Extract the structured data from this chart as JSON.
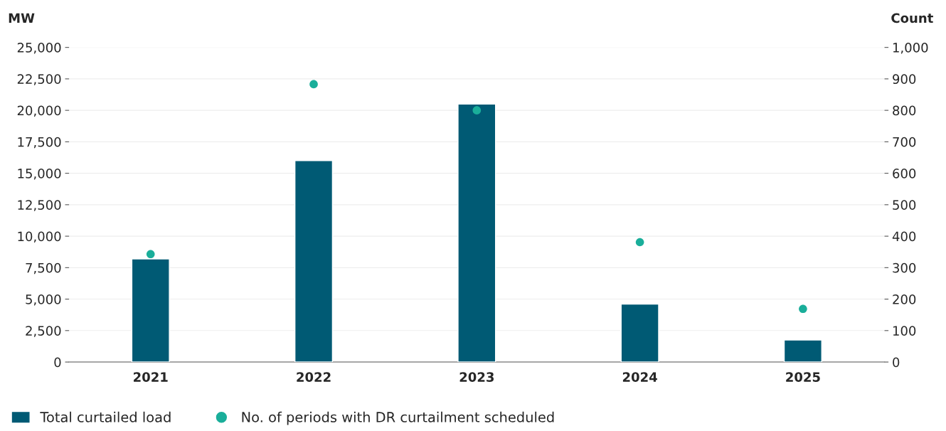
{
  "chart_data": {
    "type": "bar",
    "categories": [
      "2021",
      "2022",
      "2023",
      "2024",
      "2025"
    ],
    "ylabel": "MW",
    "y2label": "Count",
    "series": [
      {
        "name": "Total curtailed load",
        "color": "#005a74",
        "values": [
          8200,
          16000,
          20500,
          4600,
          1750
        ]
      },
      {
        "name": "No. of periods with DR curtailment scheduled",
        "type": "scatter",
        "axis": "y2",
        "color": "#1aae9a",
        "values": [
          343,
          883,
          800,
          381,
          169
        ]
      }
    ],
    "ylim": [
      0,
      25000
    ],
    "yticks": [
      0,
      {
        "value": 2500,
        "label": "2,500"
      },
      {
        "value": 5000,
        "label": "5,000"
      },
      {
        "value": 7500,
        "label": "7,500"
      },
      {
        "value": 10000,
        "label": "10,000"
      },
      {
        "value": 12500,
        "label": "12,500"
      },
      {
        "value": 15000,
        "label": "15,000"
      },
      {
        "value": 17500,
        "label": "17,500"
      },
      {
        "value": 20000,
        "label": "20,000"
      },
      {
        "value": 22500,
        "label": "22,500"
      },
      {
        "value": 25000,
        "label": "25,000"
      }
    ],
    "y2lim": [
      0,
      1000
    ],
    "y2ticks": [
      0,
      100,
      200,
      300,
      400,
      500,
      600,
      700,
      800,
      900,
      {
        "value": 1000,
        "label": "1,000"
      }
    ],
    "grid": "y",
    "legend": "bottom left",
    "marker": "circle"
  }
}
